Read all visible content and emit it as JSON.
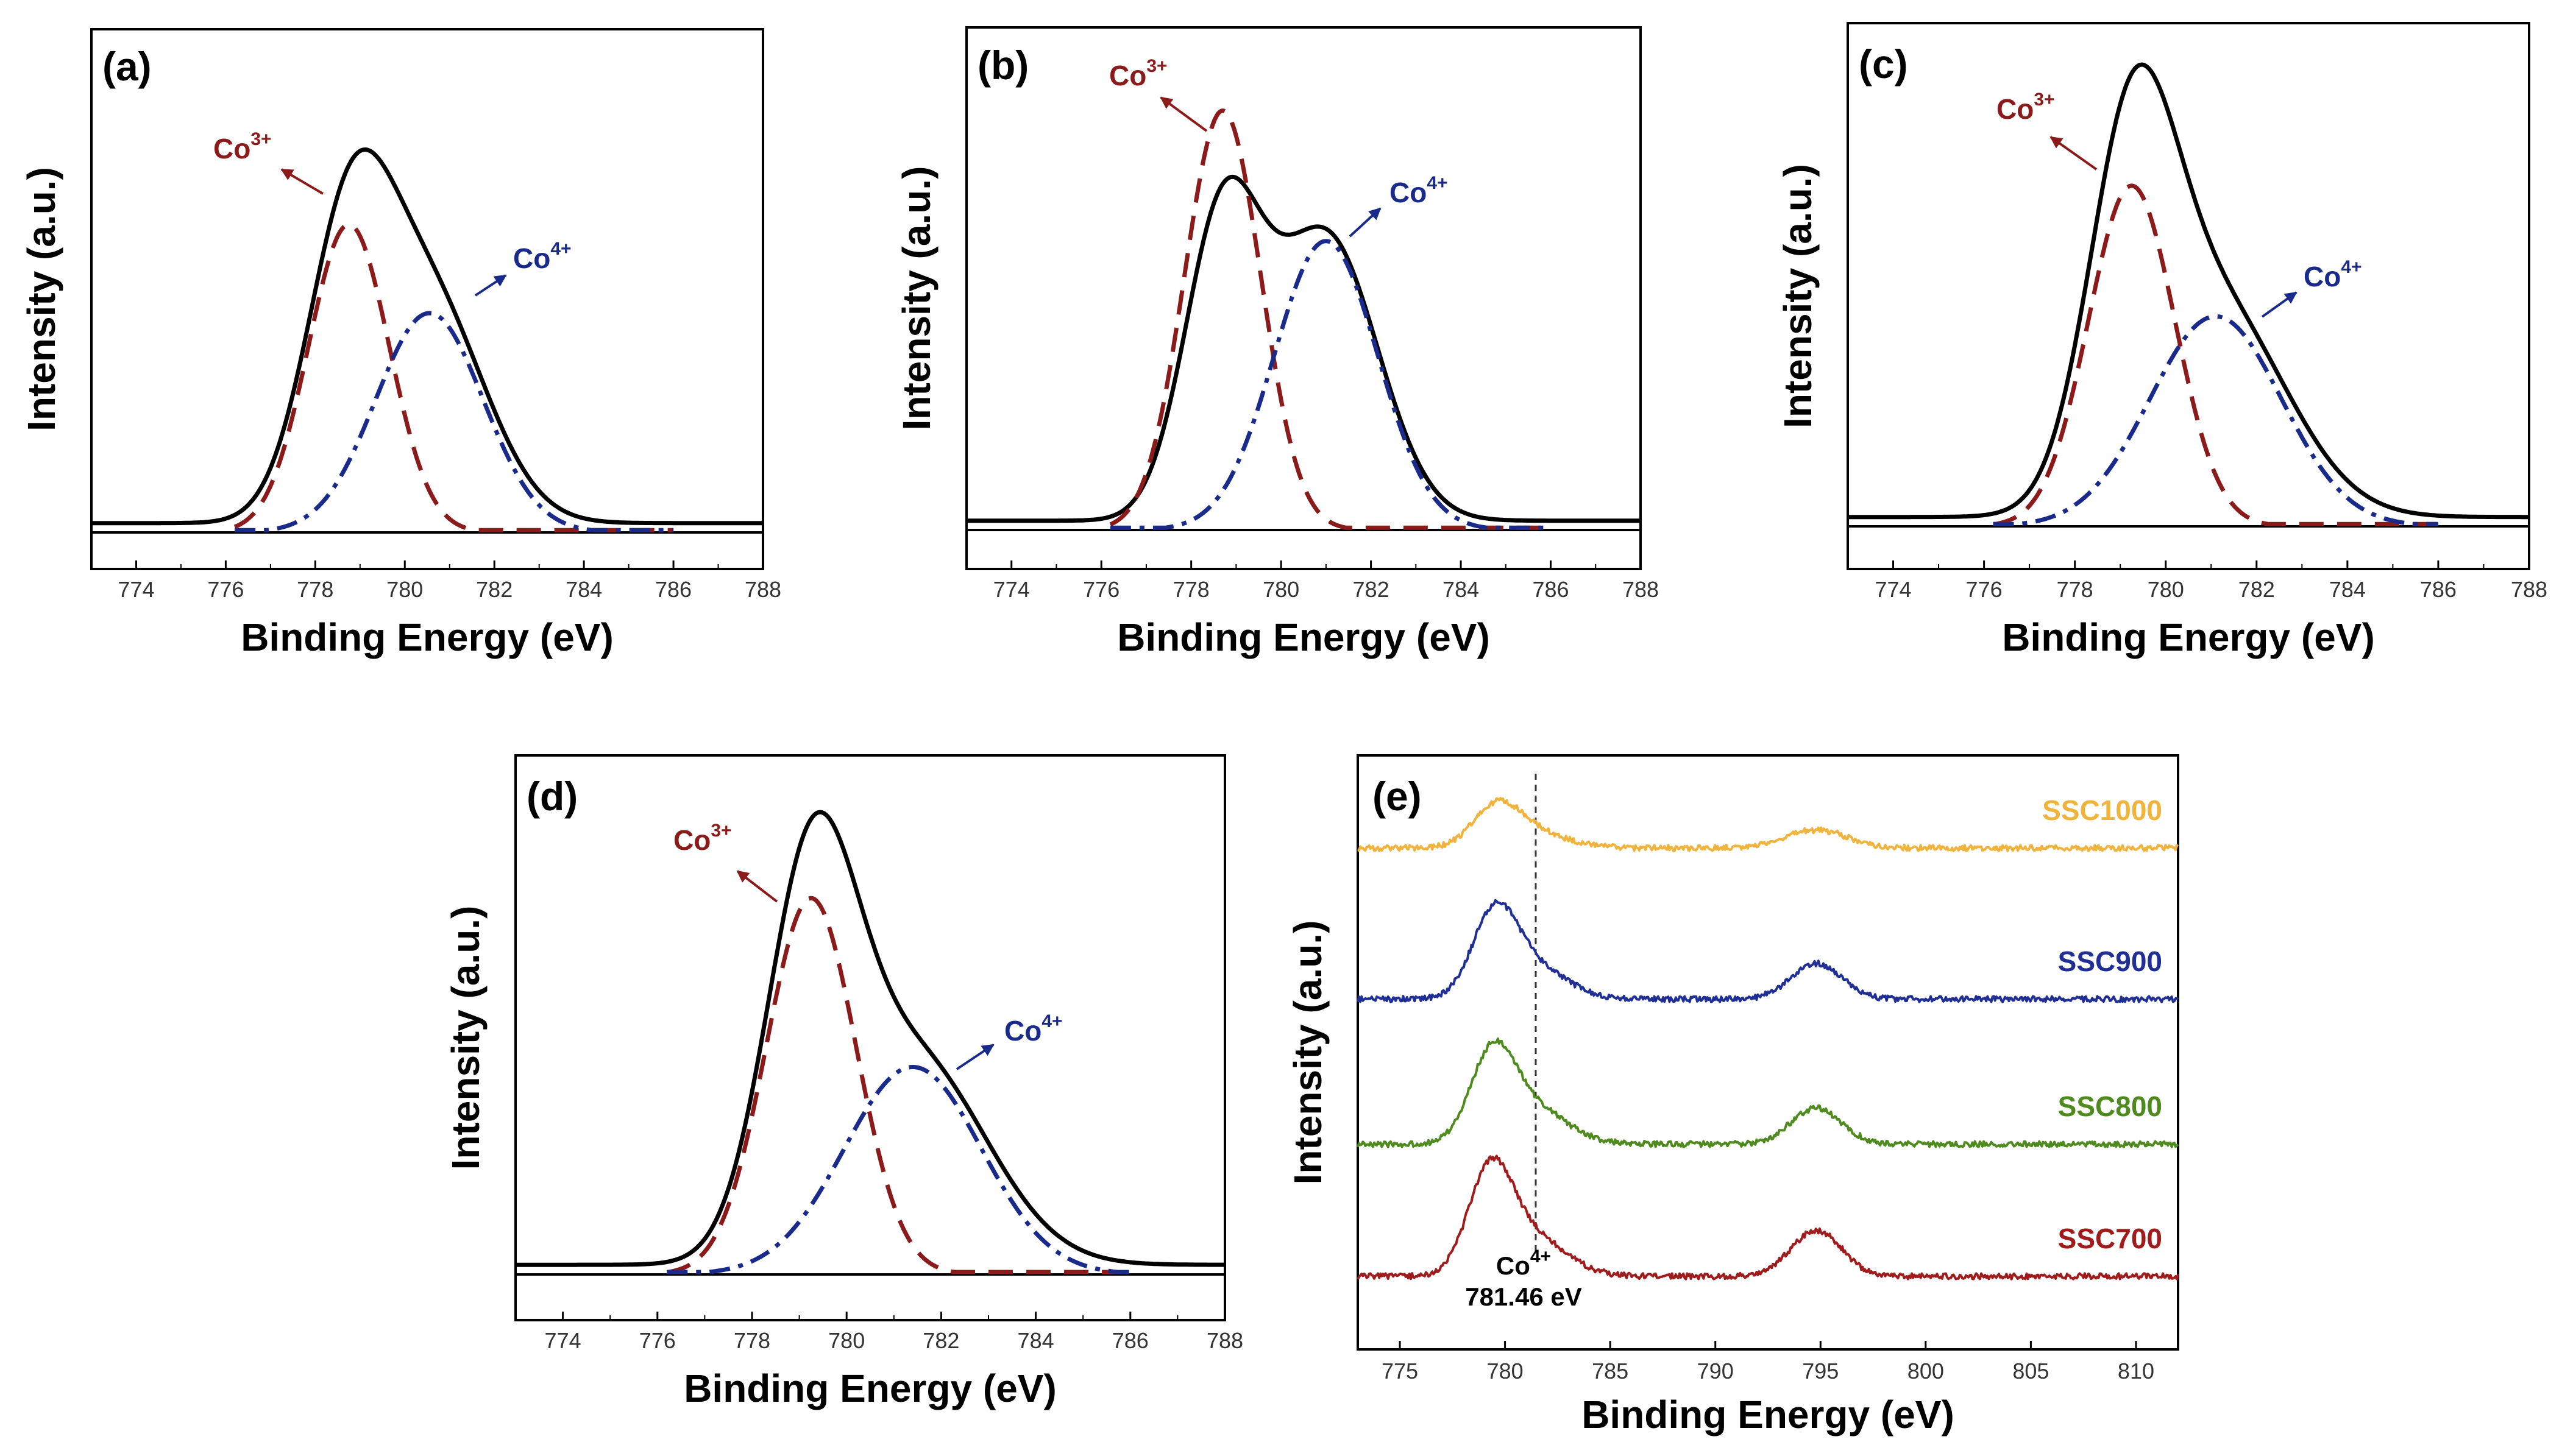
{
  "chart_data": [
    {
      "panel": "(a)",
      "type": "line",
      "xlabel": "Binding Energy (eV)",
      "ylabel": "Intensity (a.u.)",
      "xlim": [
        773,
        788
      ],
      "x_ticks": [
        774,
        776,
        778,
        780,
        782,
        784,
        786,
        788
      ],
      "series": [
        {
          "name": "Total",
          "color": "#000000",
          "style": "solid",
          "baseline": 0.02,
          "peaks": [
            {
              "center": 778.75,
              "height": 0.6,
              "width": 0.95
            },
            {
              "center": 780.55,
              "height": 0.47,
              "width": 1.25
            }
          ]
        },
        {
          "name": "Co3+",
          "color": "#8b1a1a",
          "style": "dash",
          "baseline": 0.0,
          "peaks": [
            {
              "center": 778.75,
              "height": 0.66,
              "width": 0.9
            }
          ]
        },
        {
          "name": "Co4+",
          "color": "#1a2a8b",
          "style": "dashdot",
          "baseline": 0.0,
          "peaks": [
            {
              "center": 780.55,
              "height": 0.47,
              "width": 1.2
            }
          ]
        }
      ],
      "annotations": [
        {
          "text": "Co",
          "sup": "3+",
          "color": "#8b1a1a"
        },
        {
          "text": "Co",
          "sup": "4+",
          "color": "#1a2a8b"
        }
      ]
    },
    {
      "panel": "(b)",
      "type": "line",
      "xlabel": "Binding Energy (eV)",
      "ylabel": "Intensity (a.u.)",
      "xlim": [
        773,
        788
      ],
      "x_ticks": [
        774,
        776,
        778,
        780,
        782,
        784,
        786,
        788
      ],
      "series": [
        {
          "name": "Total",
          "color": "#000000",
          "style": "solid",
          "baseline": 0.02,
          "peaks": [
            {
              "center": 778.7,
              "height": 0.64,
              "width": 0.85
            },
            {
              "center": 781.0,
              "height": 0.61,
              "width": 1.15
            }
          ]
        },
        {
          "name": "Co3+",
          "color": "#8b1a1a",
          "style": "dash",
          "baseline": 0.0,
          "peaks": [
            {
              "center": 778.7,
              "height": 0.9,
              "width": 0.85
            }
          ]
        },
        {
          "name": "Co4+",
          "color": "#1a2a8b",
          "style": "dashdot",
          "baseline": 0.0,
          "peaks": [
            {
              "center": 781.0,
              "height": 0.62,
              "width": 1.15
            }
          ]
        }
      ],
      "annotations": [
        {
          "text": "Co",
          "sup": "3+",
          "color": "#8b1a1a"
        },
        {
          "text": "Co",
          "sup": "4+",
          "color": "#1a2a8b"
        }
      ]
    },
    {
      "panel": "(c)",
      "type": "line",
      "xlabel": "Binding Energy (eV)",
      "ylabel": "Intensity (a.u.)",
      "xlim": [
        773,
        788
      ],
      "x_ticks": [
        774,
        776,
        778,
        780,
        782,
        784,
        786,
        788
      ],
      "series": [
        {
          "name": "Total",
          "color": "#000000",
          "style": "solid",
          "baseline": 0.02,
          "peaks": [
            {
              "center": 779.25,
              "height": 0.73,
              "width": 0.95
            },
            {
              "center": 781.1,
              "height": 0.45,
              "width": 1.55
            }
          ]
        },
        {
          "name": "Co3+",
          "color": "#8b1a1a",
          "style": "dash",
          "baseline": 0.0,
          "peaks": [
            {
              "center": 779.25,
              "height": 0.73,
              "width": 0.95
            }
          ]
        },
        {
          "name": "Co4+",
          "color": "#1a2a8b",
          "style": "dashdot",
          "baseline": 0.0,
          "peaks": [
            {
              "center": 781.1,
              "height": 0.45,
              "width": 1.45
            }
          ]
        }
      ],
      "annotations": [
        {
          "text": "Co",
          "sup": "3+",
          "color": "#8b1a1a"
        },
        {
          "text": "Co",
          "sup": "4+",
          "color": "#1a2a8b"
        }
      ]
    },
    {
      "panel": "(d)",
      "type": "line",
      "xlabel": "Binding Energy (eV)",
      "ylabel": "Intensity (a.u.)",
      "xlim": [
        773,
        788
      ],
      "x_ticks": [
        774,
        776,
        778,
        780,
        782,
        784,
        786,
        788
      ],
      "series": [
        {
          "name": "Total",
          "color": "#000000",
          "style": "solid",
          "baseline": 0.02,
          "peaks": [
            {
              "center": 779.25,
              "height": 0.76,
              "width": 0.95
            },
            {
              "center": 781.4,
              "height": 0.43,
              "width": 1.55
            }
          ]
        },
        {
          "name": "Co3+",
          "color": "#8b1a1a",
          "style": "dash",
          "baseline": 0.0,
          "peaks": [
            {
              "center": 779.25,
              "height": 0.78,
              "width": 0.95
            }
          ]
        },
        {
          "name": "Co4+",
          "color": "#1a2a8b",
          "style": "dashdot",
          "baseline": 0.0,
          "peaks": [
            {
              "center": 781.4,
              "height": 0.43,
              "width": 1.45
            }
          ]
        }
      ],
      "annotations": [
        {
          "text": "Co",
          "sup": "3+",
          "color": "#8b1a1a"
        },
        {
          "text": "Co",
          "sup": "4+",
          "color": "#1a2a8b"
        }
      ]
    },
    {
      "panel": "(e)",
      "type": "line",
      "xlabel": "Binding Energy (eV)",
      "ylabel": "Intensity (a.u.)",
      "xlim": [
        773,
        812
      ],
      "x_ticks": [
        775,
        780,
        785,
        790,
        795,
        800,
        805,
        810
      ],
      "reference_line": {
        "x": 781.46,
        "label": "Co",
        "sup": "4+",
        "value_label": "781.46 eV"
      },
      "series": [
        {
          "name": "SSC1000",
          "color": "#f0b43c",
          "offset": 3,
          "peaks": [
            {
              "center": 779.6,
              "height": 0.3,
              "width": 1.1
            },
            {
              "center": 781.3,
              "height": 0.12,
              "width": 1.6
            },
            {
              "center": 794.8,
              "height": 0.14,
              "width": 1.5
            }
          ]
        },
        {
          "name": "SSC900",
          "color": "#1f2f96",
          "offset": 2,
          "peaks": [
            {
              "center": 779.5,
              "height": 0.62,
              "width": 1.05
            },
            {
              "center": 781.3,
              "height": 0.25,
              "width": 1.6
            },
            {
              "center": 794.8,
              "height": 0.28,
              "width": 1.2
            }
          ]
        },
        {
          "name": "SSC800",
          "color": "#4f8a1e",
          "offset": 1,
          "peaks": [
            {
              "center": 779.4,
              "height": 0.66,
              "width": 1.05
            },
            {
              "center": 781.3,
              "height": 0.28,
              "width": 1.6
            },
            {
              "center": 794.8,
              "height": 0.28,
              "width": 1.2
            }
          ]
        },
        {
          "name": "SSC700",
          "color": "#a01c1c",
          "offset": 0,
          "peaks": [
            {
              "center": 779.3,
              "height": 0.78,
              "width": 1.05
            },
            {
              "center": 781.3,
              "height": 0.3,
              "width": 1.6
            },
            {
              "center": 794.8,
              "height": 0.36,
              "width": 1.2
            }
          ]
        }
      ]
    }
  ]
}
